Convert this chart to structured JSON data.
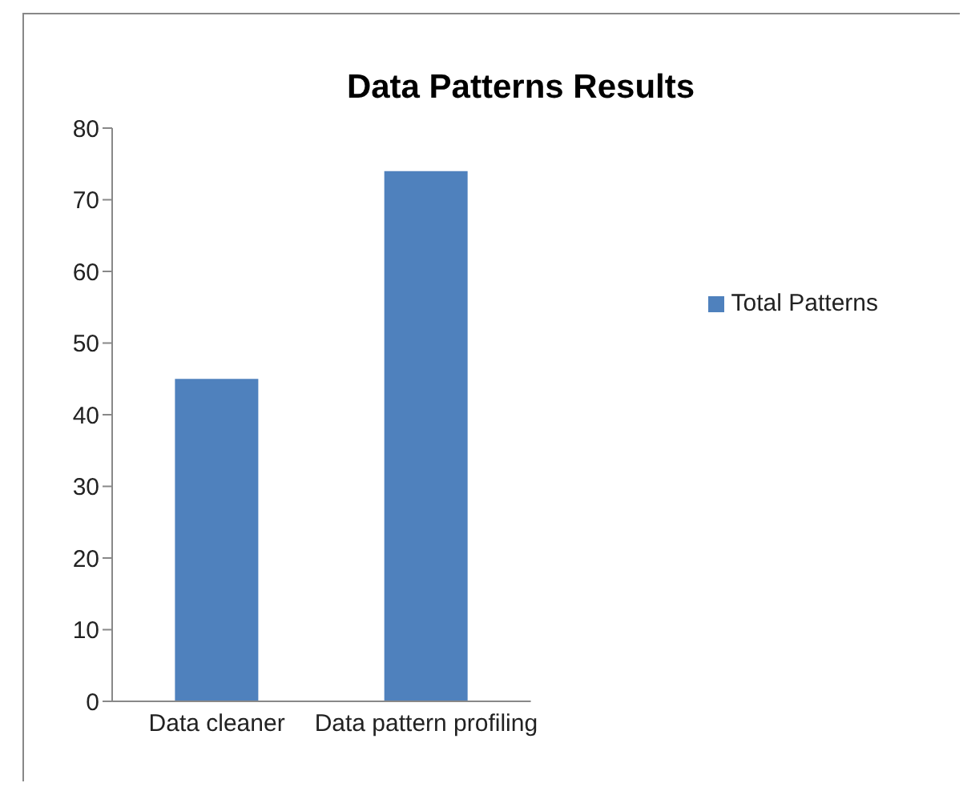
{
  "chart_data": {
    "type": "bar",
    "title": "Data Patterns Results",
    "categories": [
      "Data cleaner",
      "Data pattern  profiling"
    ],
    "series": [
      {
        "name": "Total Patterns",
        "color": "#4f81bd",
        "values": [
          45,
          74
        ]
      }
    ],
    "ylim": [
      0,
      80
    ],
    "yticks": [
      0,
      10,
      20,
      30,
      40,
      50,
      60,
      70,
      80
    ],
    "grid": false,
    "legend": "right"
  }
}
